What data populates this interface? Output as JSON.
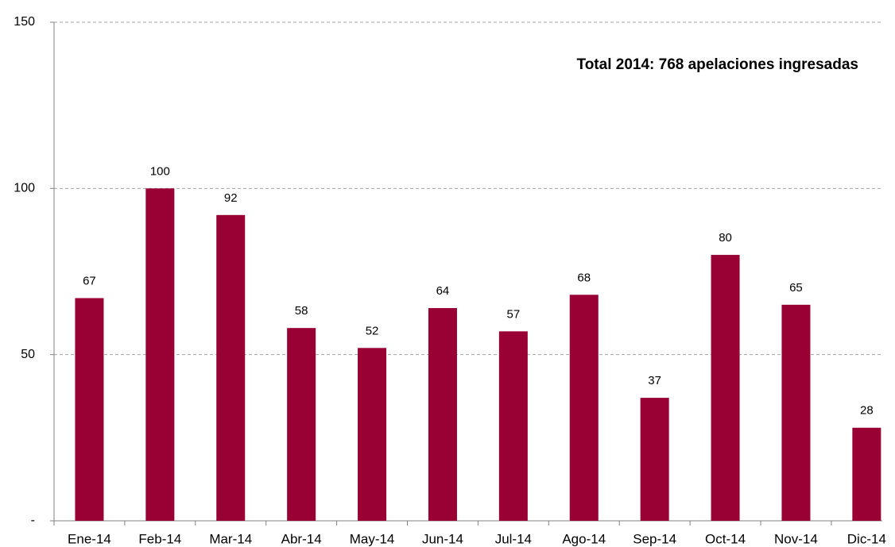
{
  "chart_data": {
    "type": "bar",
    "annotation": "Total 2014: 768 apelaciones ingresadas",
    "categories": [
      "Ene-14",
      "Feb-14",
      "Mar-14",
      "Abr-14",
      "May-14",
      "Jun-14",
      "Jul-14",
      "Ago-14",
      "Sep-14",
      "Oct-14",
      "Nov-14",
      "Dic-14"
    ],
    "values": [
      67,
      100,
      92,
      58,
      52,
      64,
      57,
      68,
      37,
      80,
      65,
      28
    ],
    "color": "#990033",
    "ylim": [
      0,
      150
    ],
    "yticks": [
      {
        "value": 0,
        "label": "-"
      },
      50,
      100,
      150
    ],
    "grid": true
  }
}
